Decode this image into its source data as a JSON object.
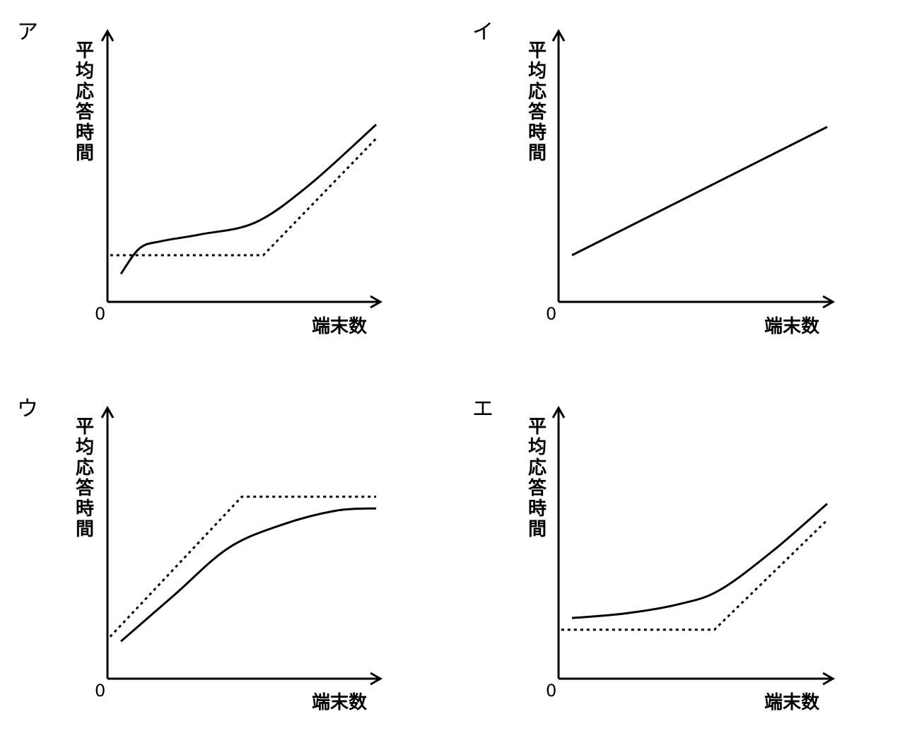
{
  "chart_data": [
    {
      "type": "line",
      "title": "ア",
      "xlabel": "端末数",
      "ylabel": "平均応答時間",
      "origin_label": "0",
      "xlim": [
        0,
        10
      ],
      "ylim": [
        0,
        10
      ],
      "series": [
        {
          "name": "solid",
          "style": "solid",
          "x": [
            0.5,
            1.2,
            2.0,
            3.5,
            5.5,
            7.5,
            10.0
          ],
          "y": [
            1.2,
            2.3,
            2.6,
            2.9,
            3.4,
            5.0,
            7.6
          ]
        },
        {
          "name": "dotted",
          "style": "dotted",
          "x": [
            0.1,
            5.8,
            10.0
          ],
          "y": [
            2.0,
            2.0,
            7.0
          ]
        }
      ]
    },
    {
      "type": "line",
      "title": "イ",
      "xlabel": "端末数",
      "ylabel": "平均応答時間",
      "origin_label": "0",
      "xlim": [
        0,
        10
      ],
      "ylim": [
        0,
        10
      ],
      "series": [
        {
          "name": "solid",
          "style": "solid",
          "x": [
            0.5,
            10.0
          ],
          "y": [
            2.0,
            7.5
          ]
        }
      ]
    },
    {
      "type": "line",
      "title": "ウ",
      "xlabel": "端末数",
      "ylabel": "平均応答時間",
      "origin_label": "0",
      "xlim": [
        0,
        10
      ],
      "ylim": [
        0,
        10
      ],
      "series": [
        {
          "name": "solid",
          "style": "solid",
          "x": [
            0.5,
            2.5,
            4.5,
            6.5,
            8.5,
            10.0
          ],
          "y": [
            1.6,
            3.6,
            5.6,
            6.6,
            7.2,
            7.3
          ]
        },
        {
          "name": "dotted",
          "style": "dotted",
          "x": [
            0.1,
            5.0,
            10.0
          ],
          "y": [
            1.8,
            7.8,
            7.8
          ]
        }
      ]
    },
    {
      "type": "line",
      "title": "エ",
      "xlabel": "端末数",
      "ylabel": "平均応答時間",
      "origin_label": "0",
      "xlim": [
        0,
        10
      ],
      "ylim": [
        0,
        10
      ],
      "series": [
        {
          "name": "solid",
          "style": "solid",
          "x": [
            0.5,
            2.5,
            4.5,
            6.0,
            8.0,
            10.0
          ],
          "y": [
            2.6,
            2.8,
            3.2,
            3.8,
            5.5,
            7.5
          ]
        },
        {
          "name": "dotted",
          "style": "dotted",
          "x": [
            0.1,
            5.8,
            10.0
          ],
          "y": [
            2.1,
            2.1,
            6.8
          ]
        }
      ]
    }
  ]
}
